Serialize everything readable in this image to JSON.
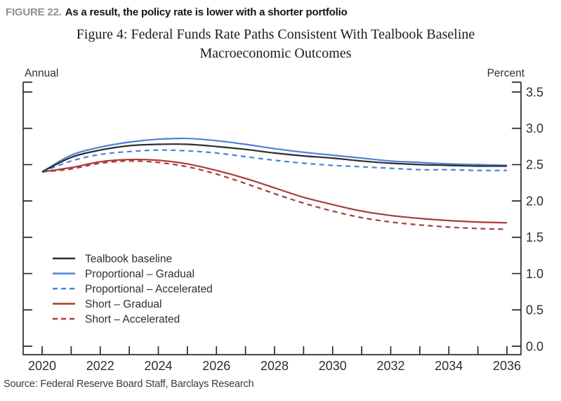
{
  "header": {
    "figure_label": "FIGURE 22.",
    "figure_title": "As a result, the policy rate is lower with a shorter portfolio"
  },
  "source": "Source: Federal Reserve Board Staff, Barclays Research",
  "chart_data": {
    "type": "line",
    "title_line1": "Figure 4: Federal Funds Rate Paths Consistent With Tealbook Baseline",
    "title_line2": "Macroeconomic Outcomes",
    "left_axis_label": "Annual",
    "right_axis_label": "Percent",
    "x": [
      2020,
      2021,
      2022,
      2023,
      2024,
      2025,
      2026,
      2027,
      2028,
      2029,
      2030,
      2031,
      2032,
      2033,
      2034,
      2035,
      2036
    ],
    "x_tick_labels": [
      "2020",
      "2022",
      "2024",
      "2026",
      "2028",
      "2030",
      "2032",
      "2034",
      "2036"
    ],
    "y_ticks": [
      0.0,
      0.5,
      1.0,
      1.5,
      2.0,
      2.5,
      3.0,
      3.5
    ],
    "y_tick_labels": [
      "0.0",
      "0.5",
      "1.0",
      "1.5",
      "2.0",
      "2.5",
      "3.0",
      "3.5"
    ],
    "ylim": [
      0.0,
      3.5
    ],
    "xlim": [
      2020,
      2036
    ],
    "grid": false,
    "legend_position": "inside-lower-left",
    "axis_color": "#2b2b2b",
    "series": [
      {
        "name": "Tealbook baseline",
        "color": "#2d2d2d",
        "style": "solid",
        "values": [
          2.4,
          2.6,
          2.7,
          2.76,
          2.78,
          2.78,
          2.75,
          2.71,
          2.66,
          2.62,
          2.59,
          2.55,
          2.52,
          2.5,
          2.49,
          2.48,
          2.48
        ]
      },
      {
        "name": "Proportional – Gradual",
        "color": "#4b82d6",
        "style": "solid",
        "values": [
          2.4,
          2.63,
          2.74,
          2.81,
          2.85,
          2.86,
          2.83,
          2.78,
          2.72,
          2.67,
          2.63,
          2.59,
          2.55,
          2.53,
          2.51,
          2.5,
          2.49
        ]
      },
      {
        "name": "Proportional – Accelerated",
        "color": "#4b82d6",
        "style": "dashed",
        "values": [
          2.4,
          2.55,
          2.64,
          2.68,
          2.7,
          2.69,
          2.66,
          2.61,
          2.56,
          2.52,
          2.49,
          2.47,
          2.45,
          2.43,
          2.43,
          2.42,
          2.42
        ]
      },
      {
        "name": "Short – Gradual",
        "color": "#a83b3b",
        "style": "solid",
        "values": [
          2.4,
          2.46,
          2.54,
          2.57,
          2.56,
          2.51,
          2.42,
          2.31,
          2.18,
          2.05,
          1.95,
          1.86,
          1.8,
          1.76,
          1.73,
          1.71,
          1.7
        ]
      },
      {
        "name": "Short – Accelerated",
        "color": "#a83b3b",
        "style": "dashed",
        "values": [
          2.4,
          2.44,
          2.52,
          2.55,
          2.53,
          2.47,
          2.37,
          2.24,
          2.1,
          1.97,
          1.86,
          1.77,
          1.71,
          1.67,
          1.64,
          1.62,
          1.61
        ]
      }
    ]
  }
}
